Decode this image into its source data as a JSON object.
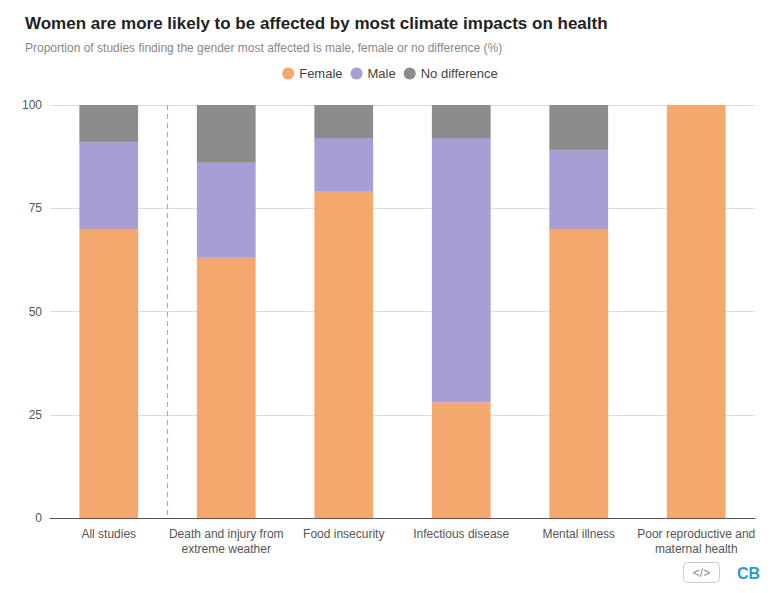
{
  "chart_data": {
    "type": "bar",
    "title": "Women are more likely to be affected by most climate impacts on health",
    "subtitle": "Proportion of studies finding the gender most affected is male, female or no difference (%)",
    "categories": [
      "All studies",
      "Death and injury from\nextreme weather",
      "Food insecurity",
      "Infectious disease",
      "Mental illness",
      "Poor reproductive and\nmaternal health"
    ],
    "series": [
      {
        "name": "Female",
        "color": "#f5a86e",
        "values": [
          70,
          63,
          79,
          28,
          70,
          100
        ]
      },
      {
        "name": "Male",
        "color": "#a89dd4",
        "values": [
          21,
          23,
          13,
          64,
          19,
          0
        ]
      },
      {
        "name": "No difference",
        "color": "#8c8c8c",
        "values": [
          9,
          14,
          8,
          8,
          11,
          0
        ]
      }
    ],
    "stacked": true,
    "ylim": [
      0,
      100
    ],
    "yticks": [
      0,
      25,
      50,
      75,
      100
    ],
    "grid": true,
    "legend": "top",
    "annotations": [
      "</>",
      "CB"
    ]
  }
}
